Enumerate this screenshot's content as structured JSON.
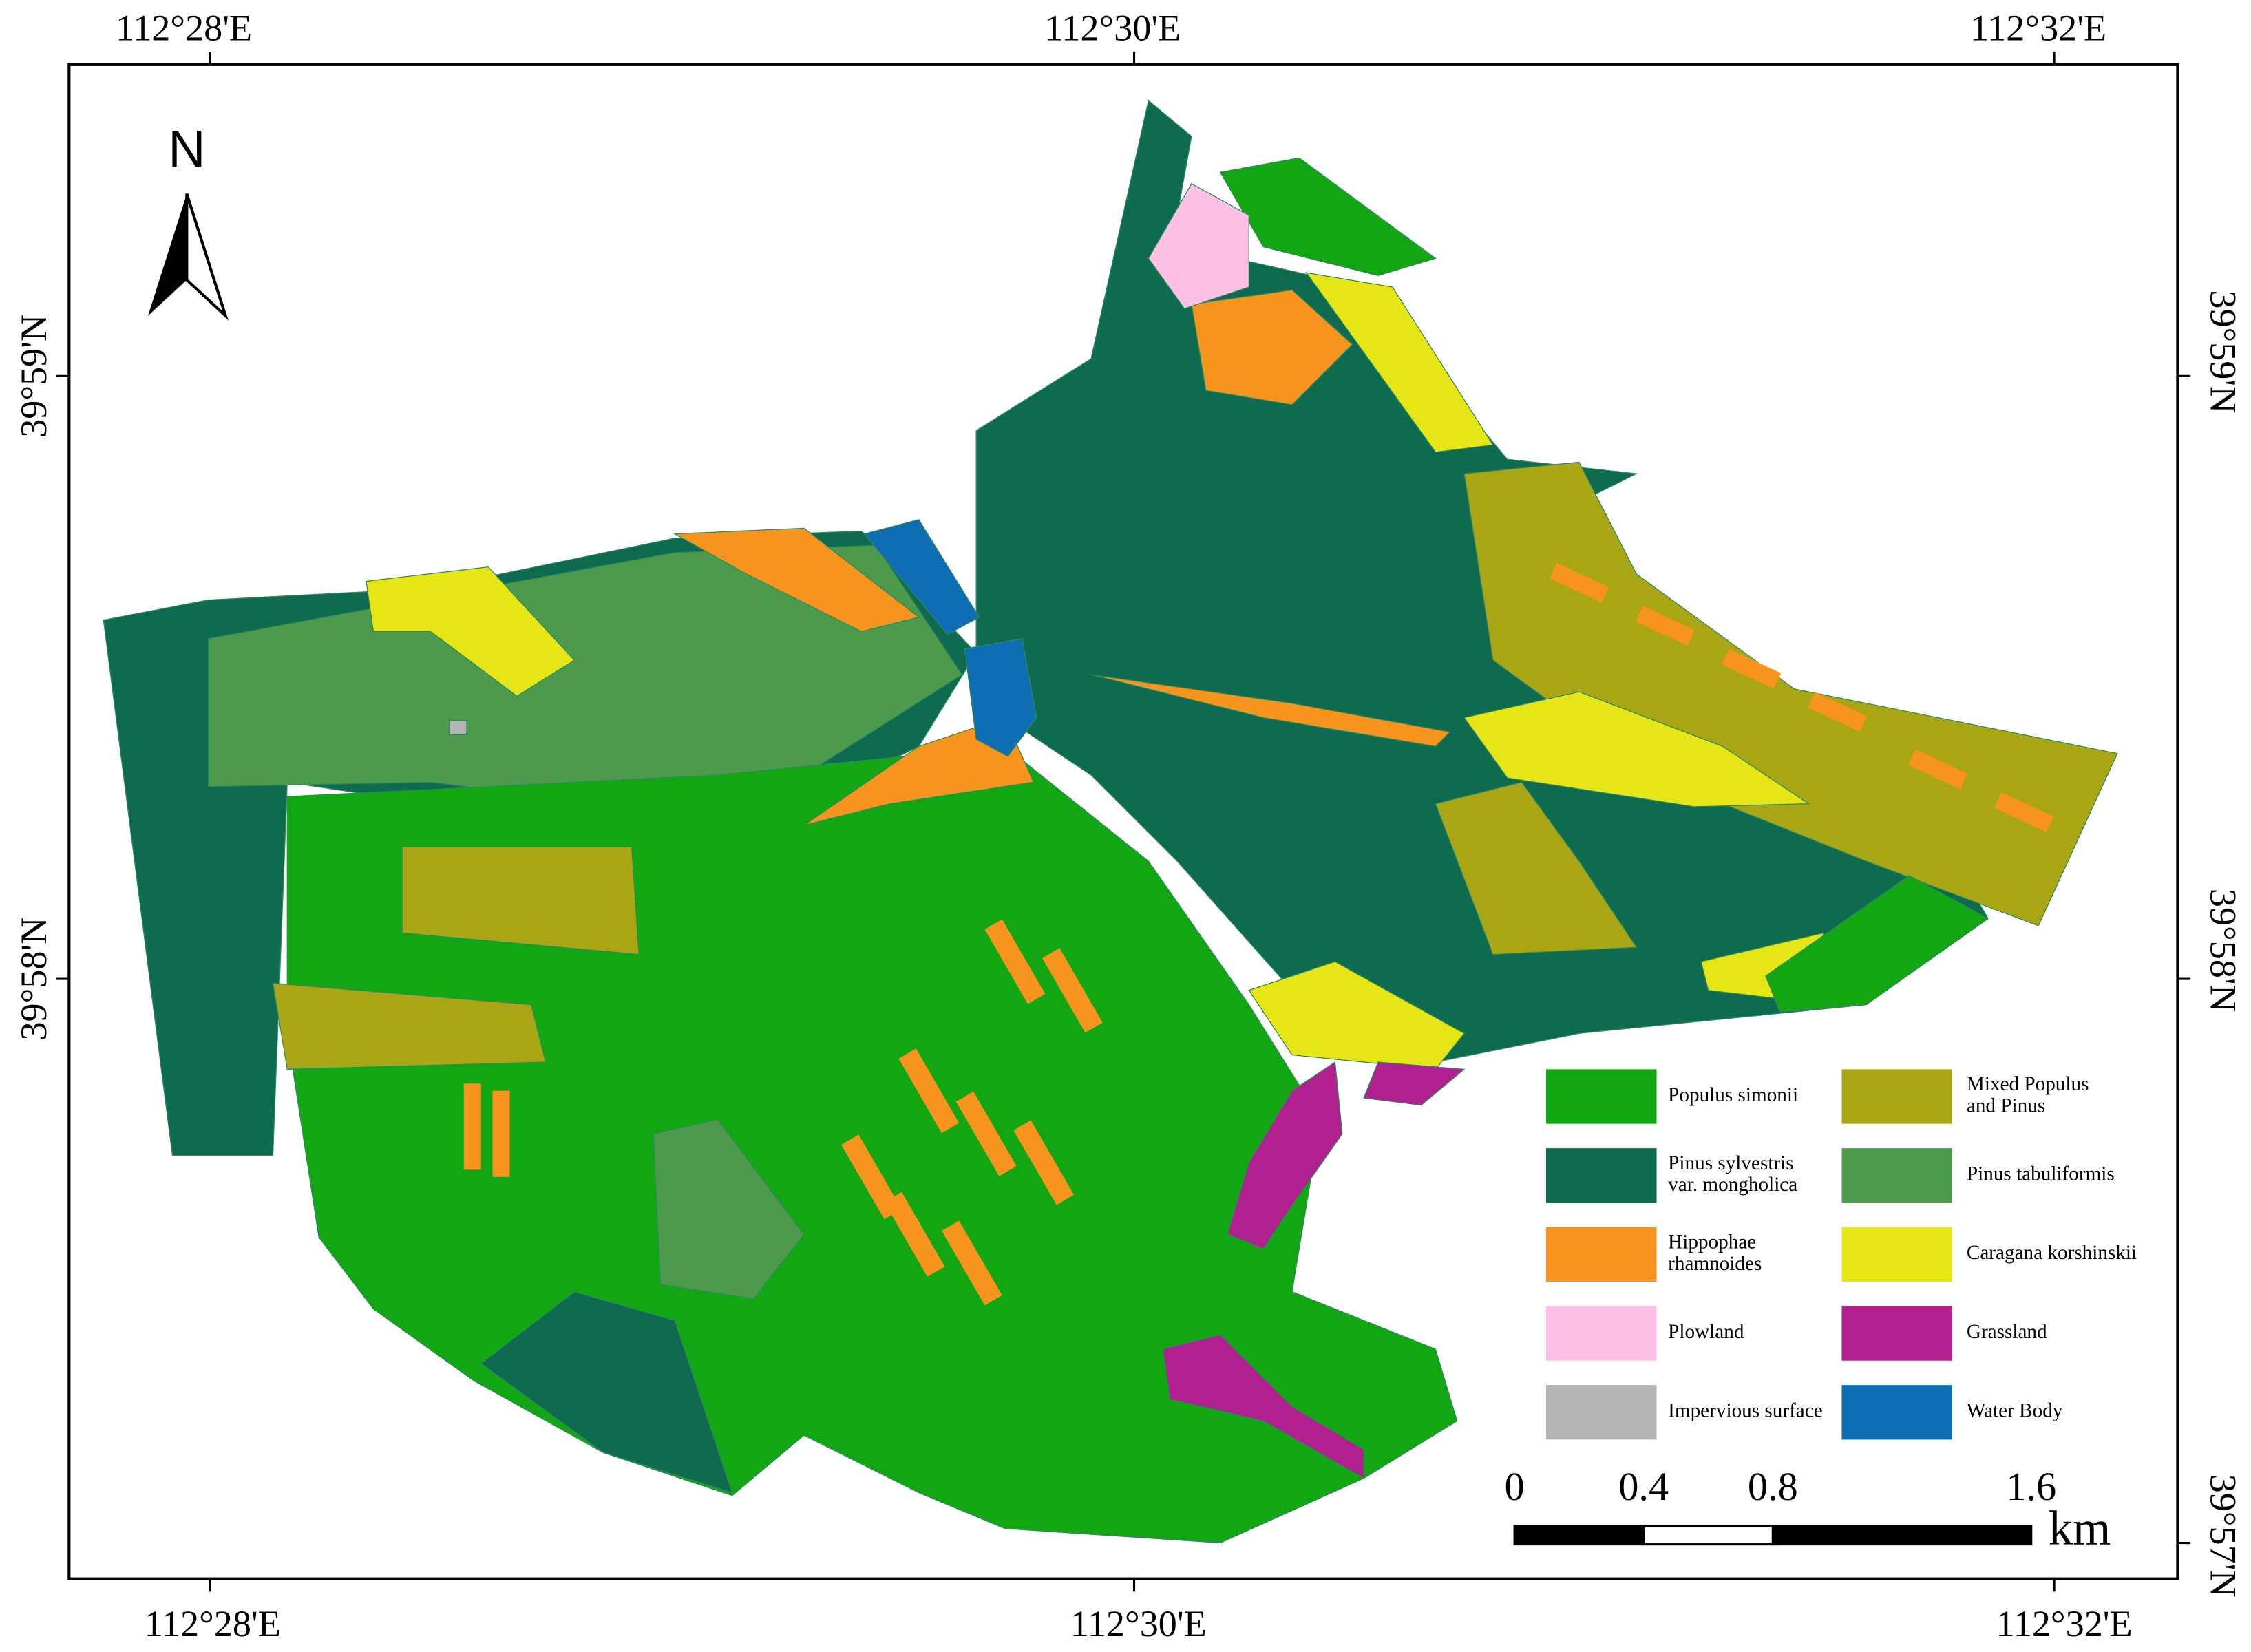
{
  "map": {
    "graticule": {
      "top": [
        "112°28'E",
        "112°30'E",
        "112°32'E"
      ],
      "bottom": [
        "112°28'E",
        "112°30'E",
        "112°32'E"
      ],
      "left": [
        "39°59'N",
        "39°58'N"
      ],
      "right": [
        "39°59'N",
        "39°58'N",
        "39°57'N"
      ]
    },
    "north": "N",
    "legend": [
      {
        "label": [
          "Populus simonii"
        ],
        "color": "#12a612"
      },
      {
        "label": [
          "Pinus sylvestris",
          "var. mongholica"
        ],
        "color": "#0f6b50"
      },
      {
        "label": [
          "Hippophae",
          "rhamnoides"
        ],
        "color": "#f7941d"
      },
      {
        "label": [
          "Plowland"
        ],
        "color": "#ffc0e6"
      },
      {
        "label": [
          "Impervious surface"
        ],
        "color": "#b4b4b4"
      },
      {
        "label": [
          "Mixed Populus",
          "and Pinus"
        ],
        "color": "#a8a614"
      },
      {
        "label": [
          "Pinus tabuliformis"
        ],
        "color": "#4d9a4d"
      },
      {
        "label": [
          "Caragana korshinskii"
        ],
        "color": "#e6e617"
      },
      {
        "label": [
          "Grassland"
        ],
        "color": "#b0208f"
      },
      {
        "label": [
          "Water Body"
        ],
        "color": "#0e6db3"
      }
    ],
    "scale": {
      "ticks": [
        0,
        0.4,
        0.8,
        1.6
      ],
      "unit": "km"
    }
  }
}
